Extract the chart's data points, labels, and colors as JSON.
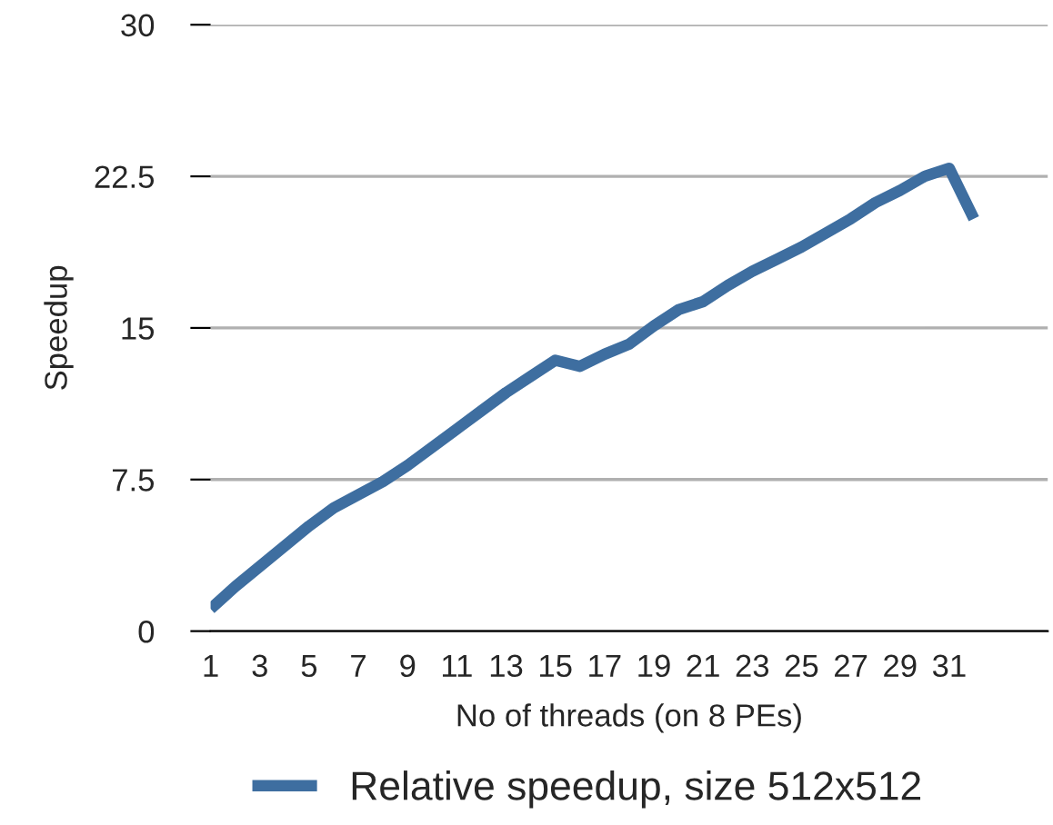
{
  "chart_data": {
    "type": "line",
    "xlabel": "No of threads (on 8 PEs)",
    "ylabel": "Speedup",
    "categories": [
      "1",
      null,
      "3",
      null,
      "5",
      null,
      "7",
      null,
      "9",
      null,
      "11",
      null,
      "13",
      null,
      "15",
      null,
      "17",
      null,
      "19",
      null,
      "21",
      null,
      "23",
      null,
      "25",
      null,
      "27",
      null,
      "29",
      null,
      "31",
      null,
      null,
      null,
      null
    ],
    "series": [
      {
        "name": "Relative speedup, size 512x512",
        "color": "#3e6ea0",
        "values": [
          1.1,
          2.2,
          3.2,
          4.2,
          5.2,
          6.1,
          6.75,
          7.4,
          8.2,
          9.1,
          10.0,
          10.9,
          11.8,
          12.6,
          13.4,
          13.1,
          13.7,
          14.2,
          15.1,
          15.9,
          16.3,
          17.1,
          17.8,
          18.4,
          19.0,
          19.7,
          20.4,
          21.2,
          21.8,
          22.5,
          22.9,
          20.4,
          null,
          null,
          null
        ]
      }
    ],
    "ylim": [
      0,
      30
    ],
    "yticks": [
      0,
      7.5,
      15,
      22.5,
      30
    ],
    "grid": "y",
    "legend": "bottom",
    "marker": "none",
    "line_style": "solid"
  }
}
